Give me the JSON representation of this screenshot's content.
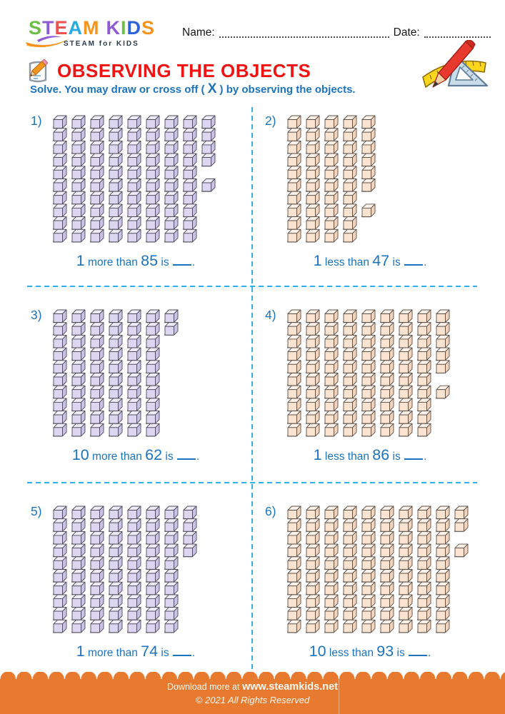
{
  "colors": {
    "accent_blue": "#1C73BE",
    "divider_blue": "#35AEE4",
    "title_red": "#F01313",
    "footer_orange": "#E87A30"
  },
  "logo": {
    "letters": [
      {
        "ch": "S",
        "color": "#6DBE45"
      },
      {
        "ch": "T",
        "color": "#8F5BD4"
      },
      {
        "ch": "E",
        "color": "#EF5150"
      },
      {
        "ch": "A",
        "color": "#29ABE2"
      },
      {
        "ch": "M",
        "color": "#F7941D"
      },
      {
        "ch": "K",
        "color": "#8F5BD4",
        "gap": true
      },
      {
        "ch": "I",
        "color": "#6DBE45"
      },
      {
        "ch": "D",
        "color": "#2E62D9"
      },
      {
        "ch": "S",
        "color": "#F7941D"
      }
    ],
    "tagline": "STEAM for KIDS"
  },
  "header": {
    "name_label": "Name:",
    "date_label": "Date:"
  },
  "title": "OBSERVING THE OBJECTS",
  "instruction": {
    "prefix": "Solve. You may draw or cross off ( ",
    "x": "X",
    "suffix": " ) by observing the objects."
  },
  "cube_colors": {
    "purple": {
      "front": "#DCD6F1",
      "top": "#EEECF8",
      "side": "#C8C2E4",
      "stroke": "#4F4A5A",
      "shadow": "#9A9A9A"
    },
    "peach": {
      "front": "#FAE3D1",
      "top": "#FCF1E8",
      "side": "#F2D3BD",
      "stroke": "#5C4F46",
      "shadow": "#9A9A9A"
    }
  },
  "problems": [
    {
      "num": "1)",
      "color": "purple",
      "total": 85,
      "columns": [
        [
          10
        ],
        [
          10
        ],
        [
          10
        ],
        [
          10
        ],
        [
          10
        ],
        [
          10
        ],
        [
          10
        ],
        [
          10
        ],
        [
          4,
          -1,
          1
        ]
      ],
      "q_first": "1",
      "q_middle": "more than",
      "q_value": "85",
      "q_is": "is"
    },
    {
      "num": "2)",
      "color": "peach",
      "total": 47,
      "columns": [
        [
          10
        ],
        [
          10
        ],
        [
          10
        ],
        [
          10
        ],
        [
          6,
          -1,
          1
        ]
      ],
      "q_first": "1",
      "q_middle": "less than",
      "q_value": "47",
      "q_is": "is"
    },
    {
      "num": "3)",
      "color": "purple",
      "total": 62,
      "columns": [
        [
          10
        ],
        [
          10
        ],
        [
          10
        ],
        [
          10
        ],
        [
          10
        ],
        [
          10
        ],
        [
          2
        ]
      ],
      "q_first": "10",
      "q_middle": "more than",
      "q_value": "62",
      "q_is": "is"
    },
    {
      "num": "4)",
      "color": "peach",
      "total": 86,
      "columns": [
        [
          10
        ],
        [
          10
        ],
        [
          10
        ],
        [
          10
        ],
        [
          10
        ],
        [
          10
        ],
        [
          10
        ],
        [
          10
        ],
        [
          5,
          -1,
          1
        ]
      ],
      "q_first": "1",
      "q_middle": "less than",
      "q_value": "86",
      "q_is": "is"
    },
    {
      "num": "5)",
      "color": "purple",
      "total": 74,
      "columns": [
        [
          10
        ],
        [
          10
        ],
        [
          10
        ],
        [
          10
        ],
        [
          10
        ],
        [
          10
        ],
        [
          10
        ],
        [
          4
        ]
      ],
      "q_first": "1",
      "q_middle": "more than",
      "q_value": "74",
      "q_is": "is"
    },
    {
      "num": "6)",
      "color": "peach",
      "total": 93,
      "columns": [
        [
          10
        ],
        [
          10
        ],
        [
          10
        ],
        [
          10
        ],
        [
          10
        ],
        [
          10
        ],
        [
          10
        ],
        [
          10
        ],
        [
          10
        ],
        [
          2,
          -1,
          1
        ]
      ],
      "q_first": "10",
      "q_middle": "less than",
      "q_value": "93",
      "q_is": "is"
    }
  ],
  "footer": {
    "download_prefix": "Download more at ",
    "site": "www.steamkids.net",
    "copyright": "© 2021 All Rights Reserved"
  }
}
